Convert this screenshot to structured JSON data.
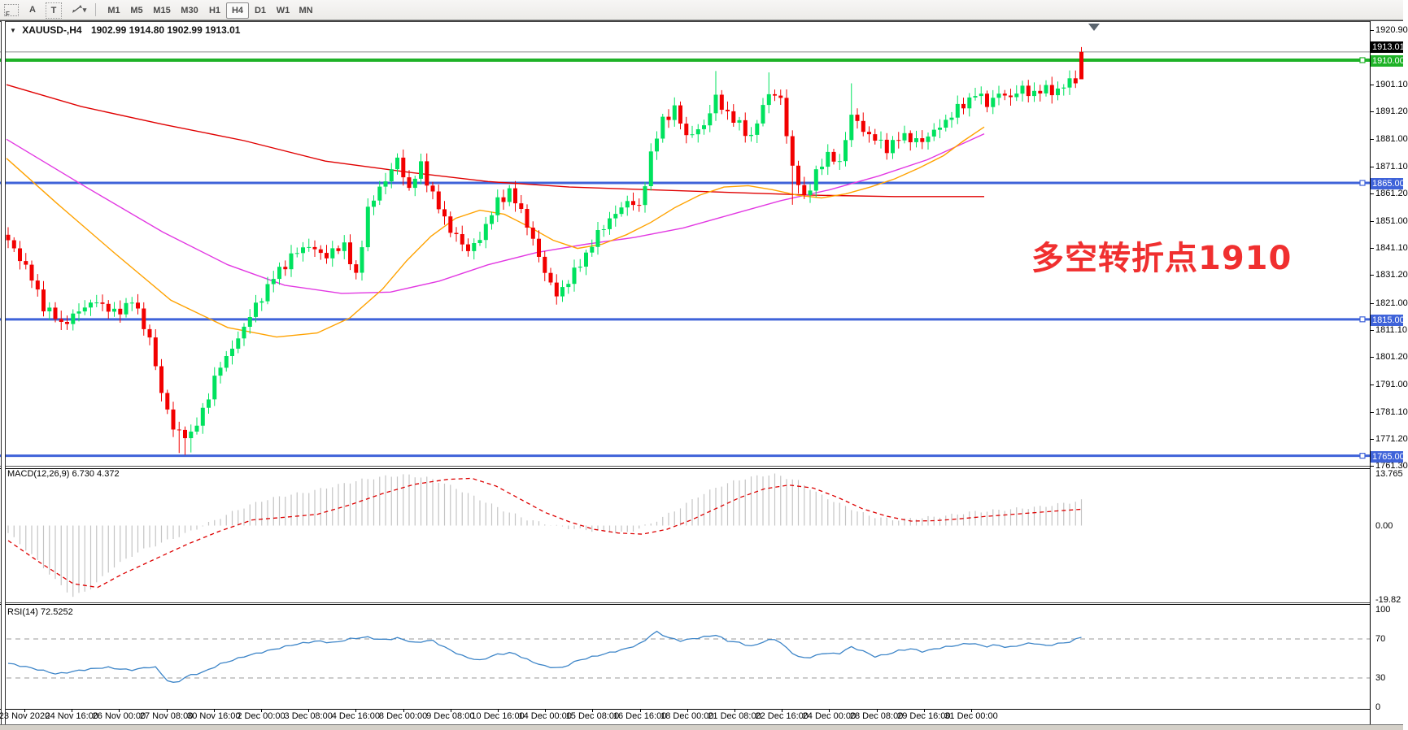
{
  "toolbar": {
    "icons": [
      {
        "name": "grid-f-icon",
        "label": "F"
      },
      {
        "name": "cursor-a-icon",
        "label": "A"
      },
      {
        "name": "text-t-icon",
        "label": "T"
      },
      {
        "name": "objects-icon",
        "label": "▾"
      }
    ],
    "timeframes": [
      "M1",
      "M5",
      "M15",
      "M30",
      "H1",
      "H4",
      "D1",
      "W1",
      "MN"
    ],
    "active_timeframe": "H4"
  },
  "chart": {
    "symbol_title": "XAUUSD-,H4",
    "ohlc_text": "1902.99 1914.80 1902.99 1913.01",
    "annotation": {
      "text": "多空转折点1910",
      "color": "#f02f2f"
    },
    "current_price": {
      "value": "1913.01",
      "bg": "#000000",
      "line_color": "#8f8f8f"
    },
    "hlines": [
      {
        "price": 1910.0,
        "label": "1910.00",
        "color": "#1eb227",
        "width": 4
      },
      {
        "price": 1865.0,
        "label": "1865.00",
        "color": "#3f63d9",
        "width": 3
      },
      {
        "price": 1815.0,
        "label": "1815.00",
        "color": "#3f63d9",
        "width": 3
      },
      {
        "price": 1765.0,
        "label": "1765.00",
        "color": "#3f63d9",
        "width": 3
      }
    ],
    "price_ticks": [
      "1920.90",
      "1901.10",
      "1891.20",
      "1881.00",
      "1871.10",
      "1861.20",
      "1851.00",
      "1841.10",
      "1831.20",
      "1821.00",
      "1811.10",
      "1801.20",
      "1791.00",
      "1781.10",
      "1771.20",
      "1761.30"
    ]
  },
  "indicators": {
    "macd": {
      "label": "MACD(12,26,9) 6.730 4.372",
      "ticks": [
        "13.765",
        "0.00",
        "-19.82"
      ]
    },
    "rsi": {
      "label": "RSI(14) 72.5252",
      "ticks": [
        "100",
        "70",
        "30",
        "0"
      ]
    }
  },
  "time_axis": {
    "labels": [
      "23 Nov 2020",
      "24 Nov 16:00",
      "26 Nov 00:00",
      "27 Nov 08:00",
      "30 Nov 16:00",
      "2 Dec 00:00",
      "3 Dec 08:00",
      "4 Dec 16:00",
      "8 Dec 00:00",
      "9 Dec 08:00",
      "10 Dec 16:00",
      "14 Dec 00:00",
      "15 Dec 08:00",
      "16 Dec 16:00",
      "18 Dec 00:00",
      "21 Dec 08:00",
      "22 Dec 16:00",
      "24 Dec 00:00",
      "28 Dec 08:00",
      "29 Dec 16:00",
      "31 Dec 00:00"
    ]
  },
  "chart_data": {
    "type": "candlestick",
    "symbol": "XAUUSD",
    "timeframe": "H4",
    "bars": 183,
    "visible_price_range": [
      1761.3,
      1920.9
    ],
    "last_bar_ohlc": {
      "open": 1902.99,
      "high": 1914.8,
      "low": 1902.99,
      "close": 1913.01
    },
    "horizontal_line_prices": [
      1910.0,
      1865.0,
      1815.0,
      1765.0
    ],
    "close_path": [
      [
        0,
        1844
      ],
      [
        3,
        1834
      ],
      [
        6,
        1820
      ],
      [
        9,
        1813
      ],
      [
        12,
        1818
      ],
      [
        15,
        1822
      ],
      [
        18,
        1817
      ],
      [
        21,
        1822
      ],
      [
        24,
        1808
      ],
      [
        26,
        1788
      ],
      [
        28,
        1775
      ],
      [
        31,
        1772
      ],
      [
        33,
        1782
      ],
      [
        36,
        1798
      ],
      [
        39,
        1808
      ],
      [
        42,
        1820
      ],
      [
        45,
        1830
      ],
      [
        48,
        1838
      ],
      [
        51,
        1842
      ],
      [
        54,
        1838
      ],
      [
        57,
        1843
      ],
      [
        59,
        1830
      ],
      [
        61,
        1856
      ],
      [
        64,
        1866
      ],
      [
        66,
        1874
      ],
      [
        68,
        1862
      ],
      [
        70,
        1872
      ],
      [
        72,
        1860
      ],
      [
        75,
        1848
      ],
      [
        78,
        1840
      ],
      [
        80,
        1845
      ],
      [
        83,
        1858
      ],
      [
        85,
        1862
      ],
      [
        88,
        1850
      ],
      [
        91,
        1832
      ],
      [
        93,
        1824
      ],
      [
        96,
        1832
      ],
      [
        99,
        1843
      ],
      [
        102,
        1852
      ],
      [
        105,
        1858
      ],
      [
        107,
        1856
      ],
      [
        109,
        1875
      ],
      [
        111,
        1888
      ],
      [
        113,
        1892
      ],
      [
        115,
        1882
      ],
      [
        118,
        1886
      ],
      [
        120,
        1896
      ],
      [
        123,
        1888
      ],
      [
        126,
        1882
      ],
      [
        129,
        1898
      ],
      [
        131,
        1896
      ],
      [
        133,
        1870
      ],
      [
        135,
        1860
      ],
      [
        137,
        1868
      ],
      [
        139,
        1876
      ],
      [
        141,
        1872
      ],
      [
        143,
        1890
      ],
      [
        146,
        1882
      ],
      [
        149,
        1878
      ],
      [
        152,
        1882
      ],
      [
        155,
        1880
      ],
      [
        158,
        1886
      ],
      [
        161,
        1892
      ],
      [
        164,
        1898
      ],
      [
        166,
        1894
      ],
      [
        168,
        1898
      ],
      [
        170,
        1896
      ],
      [
        172,
        1900
      ],
      [
        174,
        1897
      ],
      [
        176,
        1900
      ],
      [
        178,
        1898
      ],
      [
        180,
        1903
      ],
      [
        181,
        1902
      ],
      [
        182,
        1913.01
      ]
    ],
    "wick_overrides": {
      "29": {
        "low": 1766
      },
      "30": {
        "low": 1765.3
      },
      "31": {
        "low": 1766.2
      },
      "120": {
        "high": 1906
      },
      "129": {
        "high": 1905.5
      },
      "133": {
        "low": 1857
      },
      "143": {
        "high": 1901.5
      },
      "182": {
        "open": 1902.99,
        "close": 1913.01,
        "high": 1914.8,
        "low": 1902.99,
        "render": "down"
      }
    },
    "moving_averages": [
      {
        "name": "ma-slow-red",
        "color": "#e00000",
        "points": [
          [
            8,
            1901
          ],
          [
            100,
            1893
          ],
          [
            200,
            1886.5
          ],
          [
            300,
            1880.5
          ],
          [
            400,
            1873
          ],
          [
            500,
            1869
          ],
          [
            600,
            1865.5
          ],
          [
            700,
            1863.5
          ],
          [
            800,
            1862.5
          ],
          [
            900,
            1861.5
          ],
          [
            1000,
            1860.5
          ],
          [
            1100,
            1860
          ],
          [
            1210,
            1860
          ]
        ]
      },
      {
        "name": "ma-medium-magenta",
        "color": "#e238e2",
        "points": [
          [
            8,
            1881
          ],
          [
            100,
            1864.5
          ],
          [
            200,
            1847
          ],
          [
            280,
            1835
          ],
          [
            350,
            1827.5
          ],
          [
            420,
            1824.5
          ],
          [
            480,
            1825
          ],
          [
            540,
            1829
          ],
          [
            600,
            1835
          ],
          [
            660,
            1839.5
          ],
          [
            720,
            1842.5
          ],
          [
            780,
            1845
          ],
          [
            840,
            1848.5
          ],
          [
            900,
            1853.5
          ],
          [
            960,
            1858.5
          ],
          [
            1020,
            1862.5
          ],
          [
            1080,
            1867.5
          ],
          [
            1140,
            1873.5
          ],
          [
            1210,
            1883
          ]
        ]
      },
      {
        "name": "ma-fast-orange",
        "color": "#ffa200",
        "points": [
          [
            8,
            1874
          ],
          [
            70,
            1857.5
          ],
          [
            140,
            1839.5
          ],
          [
            210,
            1822
          ],
          [
            280,
            1812
          ],
          [
            340,
            1808.5
          ],
          [
            390,
            1810
          ],
          [
            430,
            1815.5
          ],
          [
            470,
            1826
          ],
          [
            500,
            1836.5
          ],
          [
            530,
            1845.5
          ],
          [
            560,
            1852
          ],
          [
            590,
            1855
          ],
          [
            620,
            1853.5
          ],
          [
            650,
            1849
          ],
          [
            680,
            1844
          ],
          [
            710,
            1841
          ],
          [
            740,
            1842.5
          ],
          [
            770,
            1846
          ],
          [
            800,
            1850.5
          ],
          [
            830,
            1856
          ],
          [
            860,
            1860.5
          ],
          [
            890,
            1863.5
          ],
          [
            920,
            1864
          ],
          [
            950,
            1862.5
          ],
          [
            980,
            1860.5
          ],
          [
            1010,
            1859.5
          ],
          [
            1040,
            1861
          ],
          [
            1070,
            1863.5
          ],
          [
            1100,
            1866.5
          ],
          [
            1130,
            1870.5
          ],
          [
            1160,
            1875
          ],
          [
            1185,
            1880.5
          ],
          [
            1210,
            1885.5
          ]
        ]
      }
    ],
    "macd": {
      "params": "12,26,9",
      "current_macd": 6.73,
      "current_signal": 4.372,
      "axis_range": [
        -19.82,
        13.765
      ],
      "histogram_path": [
        [
          10,
          -2
        ],
        [
          40,
          -8
        ],
        [
          70,
          -15
        ],
        [
          90,
          -19
        ],
        [
          110,
          -17
        ],
        [
          140,
          -11
        ],
        [
          170,
          -7
        ],
        [
          200,
          -4.5
        ],
        [
          230,
          -2
        ],
        [
          260,
          1
        ],
        [
          290,
          4
        ],
        [
          320,
          6.5
        ],
        [
          350,
          8
        ],
        [
          380,
          9
        ],
        [
          410,
          10.5
        ],
        [
          440,
          12
        ],
        [
          470,
          13
        ],
        [
          500,
          13.5
        ],
        [
          530,
          12.5
        ],
        [
          560,
          10
        ],
        [
          590,
          7
        ],
        [
          620,
          4
        ],
        [
          650,
          1.5
        ],
        [
          680,
          0
        ],
        [
          710,
          -1
        ],
        [
          740,
          -1.5
        ],
        [
          770,
          -2
        ],
        [
          800,
          0.5
        ],
        [
          830,
          4
        ],
        [
          860,
          8
        ],
        [
          890,
          11
        ],
        [
          920,
          12.8
        ],
        [
          950,
          13.7
        ],
        [
          980,
          12
        ],
        [
          1010,
          8
        ],
        [
          1040,
          5
        ],
        [
          1070,
          2.5
        ],
        [
          1100,
          1.5
        ],
        [
          1130,
          2
        ],
        [
          1160,
          2.5
        ],
        [
          1190,
          3.5
        ],
        [
          1220,
          4
        ],
        [
          1250,
          4.5
        ],
        [
          1280,
          5
        ],
        [
          1310,
          6
        ],
        [
          1332,
          6.73
        ]
      ],
      "signal_path": [
        [
          10,
          -4
        ],
        [
          50,
          -10
        ],
        [
          90,
          -15.5
        ],
        [
          120,
          -16.5
        ],
        [
          150,
          -13
        ],
        [
          190,
          -9
        ],
        [
          230,
          -5
        ],
        [
          270,
          -1.5
        ],
        [
          310,
          1.5
        ],
        [
          350,
          2.2
        ],
        [
          390,
          3
        ],
        [
          430,
          5.5
        ],
        [
          470,
          8.5
        ],
        [
          510,
          11
        ],
        [
          550,
          12.3
        ],
        [
          580,
          12.6
        ],
        [
          610,
          10.5
        ],
        [
          640,
          7
        ],
        [
          670,
          3.5
        ],
        [
          700,
          1
        ],
        [
          730,
          -1
        ],
        [
          760,
          -2
        ],
        [
          790,
          -2.3
        ],
        [
          820,
          -1
        ],
        [
          850,
          1.5
        ],
        [
          880,
          4.5
        ],
        [
          910,
          7.5
        ],
        [
          940,
          9.8
        ],
        [
          970,
          10.8
        ],
        [
          1000,
          10
        ],
        [
          1030,
          7.5
        ],
        [
          1060,
          4.5
        ],
        [
          1090,
          2.5
        ],
        [
          1120,
          1.2
        ],
        [
          1150,
          1.3
        ],
        [
          1180,
          1.8
        ],
        [
          1210,
          2.4
        ],
        [
          1240,
          2.9
        ],
        [
          1270,
          3.4
        ],
        [
          1300,
          3.9
        ],
        [
          1332,
          4.37
        ]
      ]
    },
    "rsi": {
      "period": 14,
      "current": 72.5252,
      "levels": [
        70,
        30
      ],
      "axis_range": [
        0,
        100
      ],
      "path": [
        [
          10,
          45
        ],
        [
          40,
          40
        ],
        [
          70,
          34
        ],
        [
          100,
          38
        ],
        [
          130,
          41
        ],
        [
          160,
          38
        ],
        [
          190,
          42
        ],
        [
          205,
          28
        ],
        [
          215,
          24
        ],
        [
          230,
          32
        ],
        [
          250,
          36
        ],
        [
          270,
          44
        ],
        [
          300,
          52
        ],
        [
          330,
          58
        ],
        [
          360,
          64
        ],
        [
          390,
          68
        ],
        [
          410,
          66
        ],
        [
          430,
          70
        ],
        [
          450,
          72
        ],
        [
          470,
          69
        ],
        [
          490,
          71
        ],
        [
          510,
          66
        ],
        [
          530,
          69
        ],
        [
          550,
          60
        ],
        [
          570,
          52
        ],
        [
          590,
          48
        ],
        [
          610,
          54
        ],
        [
          630,
          56
        ],
        [
          650,
          48
        ],
        [
          670,
          42
        ],
        [
          690,
          40
        ],
        [
          710,
          48
        ],
        [
          730,
          52
        ],
        [
          750,
          56
        ],
        [
          770,
          60
        ],
        [
          790,
          66
        ],
        [
          805,
          78
        ],
        [
          820,
          72
        ],
        [
          835,
          68
        ],
        [
          850,
          70
        ],
        [
          865,
          72
        ],
        [
          880,
          74
        ],
        [
          895,
          68
        ],
        [
          910,
          66
        ],
        [
          925,
          62
        ],
        [
          940,
          68
        ],
        [
          955,
          70
        ],
        [
          970,
          58
        ],
        [
          985,
          50
        ],
        [
          1000,
          52
        ],
        [
          1015,
          56
        ],
        [
          1030,
          54
        ],
        [
          1045,
          62
        ],
        [
          1060,
          58
        ],
        [
          1075,
          52
        ],
        [
          1090,
          54
        ],
        [
          1105,
          58
        ],
        [
          1120,
          60
        ],
        [
          1135,
          57
        ],
        [
          1150,
          60
        ],
        [
          1165,
          62
        ],
        [
          1180,
          64
        ],
        [
          1195,
          66
        ],
        [
          1210,
          62
        ],
        [
          1225,
          64
        ],
        [
          1240,
          61
        ],
        [
          1255,
          64
        ],
        [
          1270,
          66
        ],
        [
          1285,
          63
        ],
        [
          1300,
          65
        ],
        [
          1315,
          67
        ],
        [
          1332,
          72.5
        ]
      ]
    },
    "colors": {
      "up_candle": "#00e25e",
      "down_candle": "#f20000",
      "macd_histogram": "#c4c4c4",
      "macd_signal": "#dd0000",
      "rsi_line": "#3d85c8"
    }
  }
}
